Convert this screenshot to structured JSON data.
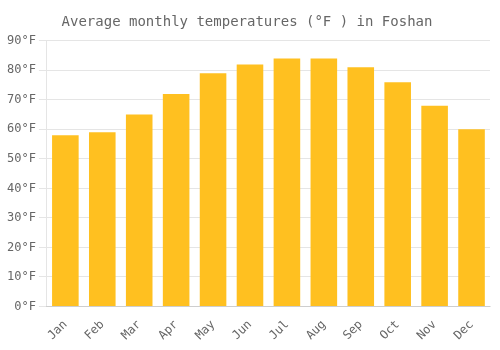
{
  "chart_data": {
    "type": "bar",
    "title": "Average monthly temperatures (°F ) in Foshan",
    "categories": [
      "Jan",
      "Feb",
      "Mar",
      "Apr",
      "May",
      "Jun",
      "Jul",
      "Aug",
      "Sep",
      "Oct",
      "Nov",
      "Dec"
    ],
    "values": [
      58,
      59,
      65,
      72,
      79,
      82,
      84,
      84,
      81,
      76,
      68,
      60
    ],
    "color": "#FFC020",
    "ylim": [
      0,
      90
    ],
    "yticks": [
      {
        "value": 0,
        "label": "0°F"
      },
      {
        "value": 10,
        "label": "10°F"
      },
      {
        "value": 20,
        "label": "20°F"
      },
      {
        "value": 30,
        "label": "30°F"
      },
      {
        "value": 40,
        "label": "40°F"
      },
      {
        "value": 50,
        "label": "50°F"
      },
      {
        "value": 60,
        "label": "60°F"
      },
      {
        "value": 70,
        "label": "70°F"
      },
      {
        "value": 80,
        "label": "80°F"
      },
      {
        "value": 90,
        "label": "90°F"
      }
    ],
    "grid": true
  }
}
